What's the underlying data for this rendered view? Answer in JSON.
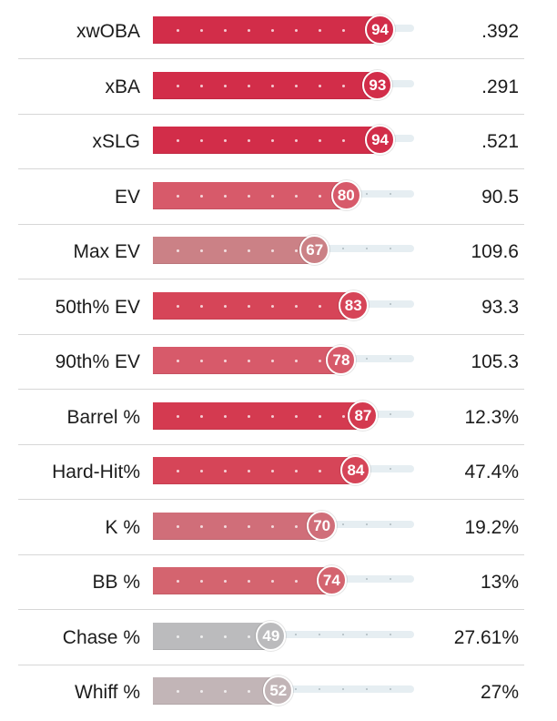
{
  "metrics": [
    {
      "label": "xwOBA",
      "percentile": 94,
      "value": ".392",
      "color": "#d22d49"
    },
    {
      "label": "xBA",
      "percentile": 93,
      "value": ".291",
      "color": "#d22d49"
    },
    {
      "label": "xSLG",
      "percentile": 94,
      "value": ".521",
      "color": "#d22d49"
    },
    {
      "label": "EV",
      "percentile": 80,
      "value": "90.5",
      "color": "#d75a6a"
    },
    {
      "label": "Max EV",
      "percentile": 67,
      "value": "109.6",
      "color": "#cb8186"
    },
    {
      "label": "50th% EV",
      "percentile": 83,
      "value": "93.3",
      "color": "#d64558"
    },
    {
      "label": "90th% EV",
      "percentile": 78,
      "value": "105.3",
      "color": "#d75a6a"
    },
    {
      "label": "Barrel %",
      "percentile": 87,
      "value": "12.3%",
      "color": "#d43a50"
    },
    {
      "label": "Hard-Hit%",
      "percentile": 84,
      "value": "47.4%",
      "color": "#d64558"
    },
    {
      "label": "K %",
      "percentile": 70,
      "value": "19.2%",
      "color": "#d06e79"
    },
    {
      "label": "BB %",
      "percentile": 74,
      "value": "13%",
      "color": "#d4646f"
    },
    {
      "label": "Chase %",
      "percentile": 49,
      "value": "27.61%",
      "color": "#bbbbbd"
    },
    {
      "label": "Whiff %",
      "percentile": 52,
      "value": "27%",
      "color": "#c2b5b7"
    }
  ]
}
